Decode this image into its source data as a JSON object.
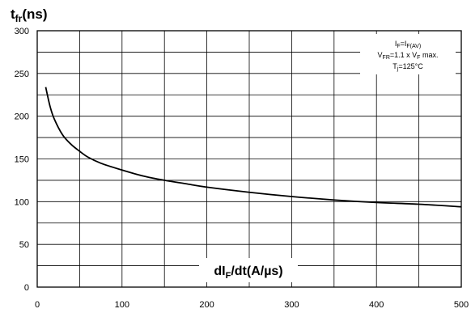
{
  "chart_data": {
    "type": "line",
    "ylabel": {
      "main": "t",
      "sub": "fr",
      "unit": "(ns)"
    },
    "xlabel": {
      "main": "dI",
      "sub": "F",
      "rest": "/dt(A/µs)"
    },
    "x_ticks": [
      "0",
      "100",
      "200",
      "300",
      "400",
      "500"
    ],
    "y_ticks": [
      "0",
      "50",
      "100",
      "150",
      "200",
      "250",
      "300"
    ],
    "xlim": [
      0,
      500
    ],
    "ylim": [
      0,
      300
    ],
    "grid": true,
    "legend_lines": [
      {
        "a": "I",
        "a_sub": "F",
        "b": "=I",
        "b_sub": "F(AV)",
        "c": ""
      },
      {
        "a": "V",
        "a_sub": "FR",
        "b": "=1.1 x V",
        "b_sub": "F",
        "c": " max."
      },
      {
        "a": "T",
        "a_sub": "j",
        "b": "=125°C",
        "b_sub": "",
        "c": ""
      }
    ],
    "legend_placement": "top-right",
    "series": [
      {
        "x": [
          10,
          15,
          20,
          30,
          40,
          50,
          60,
          75,
          100,
          125,
          150,
          175,
          200,
          250,
          300,
          350,
          400,
          450,
          500
        ],
        "y": [
          234,
          212,
          197,
          178,
          167,
          159,
          152,
          145,
          137,
          130,
          125,
          121,
          117,
          111,
          106,
          102,
          99,
          97,
          94
        ]
      }
    ]
  }
}
